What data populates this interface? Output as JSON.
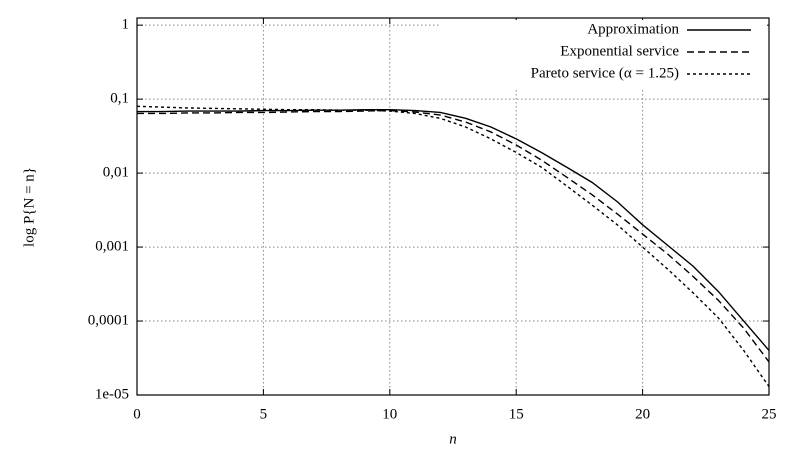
{
  "chart_data": {
    "type": "line",
    "xlabel": "n",
    "ylabel": "log P{N = n}",
    "x": [
      0,
      1,
      2,
      3,
      4,
      5,
      6,
      7,
      8,
      9,
      10,
      11,
      12,
      13,
      14,
      15,
      16,
      17,
      18,
      19,
      20,
      21,
      22,
      23,
      24,
      25
    ],
    "series": [
      {
        "name": "Approximation",
        "color": "#000000",
        "style": "solid",
        "values": [
          0.068,
          0.068,
          0.069,
          0.069,
          0.069,
          0.07,
          0.07,
          0.071,
          0.071,
          0.072,
          0.072,
          0.07,
          0.066,
          0.055,
          0.042,
          0.029,
          0.019,
          0.012,
          0.0075,
          0.0041,
          0.002,
          0.00105,
          0.00055,
          0.00025,
          0.0001,
          4e-05
        ]
      },
      {
        "name": "Exponential service",
        "color": "#000000",
        "style": "dashed",
        "values": [
          0.064,
          0.064,
          0.065,
          0.065,
          0.066,
          0.066,
          0.067,
          0.068,
          0.068,
          0.069,
          0.07,
          0.067,
          0.061,
          0.049,
          0.036,
          0.024,
          0.015,
          0.0088,
          0.0051,
          0.0028,
          0.0015,
          0.0008,
          0.0004,
          0.00019,
          8e-05,
          2.8e-05
        ]
      },
      {
        "name": "Pareto service (α = 1.25)",
        "color": "#000000",
        "style": "dotted",
        "values": [
          0.08,
          0.078,
          0.076,
          0.075,
          0.074,
          0.073,
          0.072,
          0.072,
          0.071,
          0.071,
          0.069,
          0.064,
          0.055,
          0.042,
          0.029,
          0.019,
          0.012,
          0.0067,
          0.0037,
          0.002,
          0.001,
          0.0005,
          0.00024,
          0.00011,
          4e-05,
          1.3e-05
        ]
      }
    ],
    "xlim": [
      0,
      25
    ],
    "xticks": [
      0,
      5,
      10,
      15,
      20,
      25
    ],
    "ylim": [
      1e-05,
      1.25
    ],
    "yscale": "log",
    "yticks": [
      {
        "value": 1e-05,
        "label": "1e-05"
      },
      {
        "value": 0.0001,
        "label": "0,0001"
      },
      {
        "value": 0.001,
        "label": "0,001"
      },
      {
        "value": 0.01,
        "label": "0,01"
      },
      {
        "value": 0.1,
        "label": "0,1"
      },
      1
    ],
    "grid": true,
    "legend": "top-right"
  }
}
